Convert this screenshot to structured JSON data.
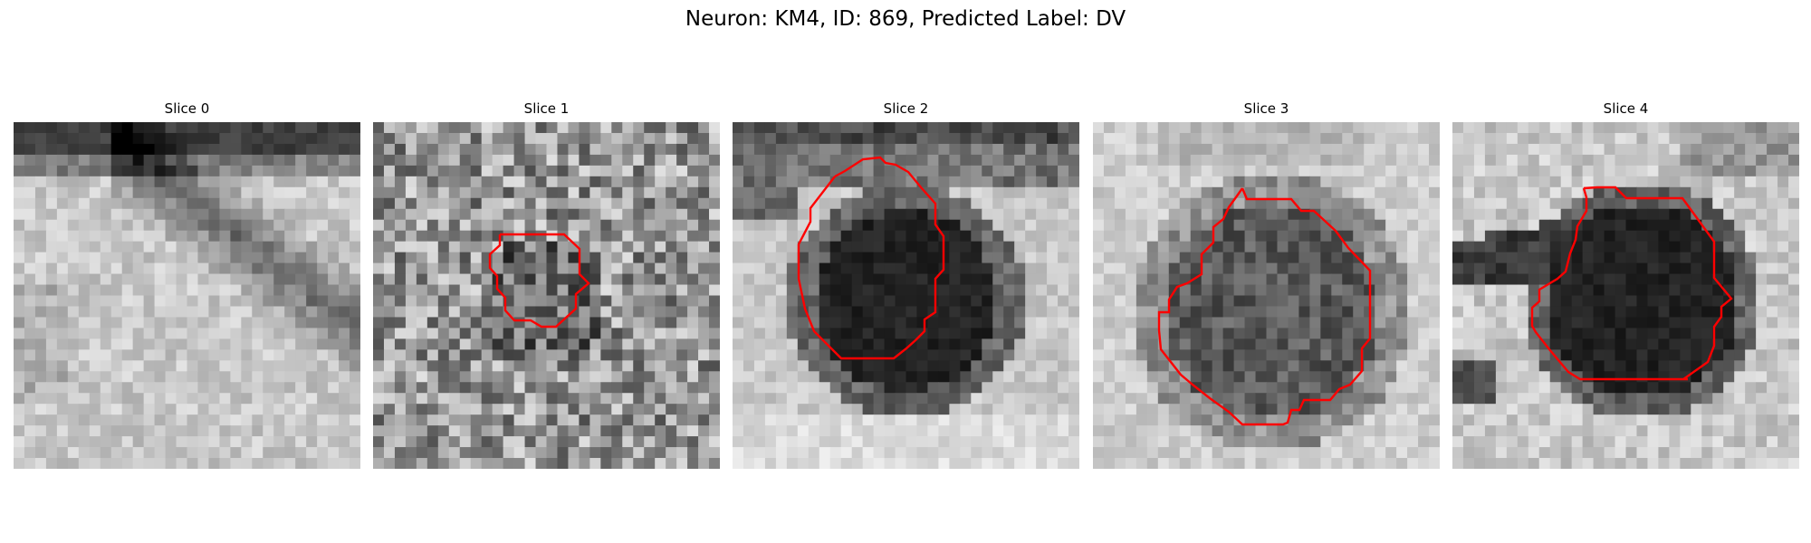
{
  "figure": {
    "title": "Neuron: KM4, ID: 869, Predicted Label: DV"
  },
  "panels": [
    {
      "title": "Slice 0",
      "contour": false,
      "texture": "upper-dark-band with diagonal dark band to lower-right"
    },
    {
      "title": "Slice 1",
      "contour": true,
      "texture": "noisy gray field"
    },
    {
      "title": "Slice 2",
      "contour": true,
      "texture": "dark cell body in center, dark band at top"
    },
    {
      "title": "Slice 3",
      "contour": true,
      "texture": "mottled dark cell body in center"
    },
    {
      "title": "Slice 4",
      "contour": true,
      "texture": "dark cell body with dark process to the left"
    }
  ],
  "colors": {
    "contour": "#ff0000",
    "background": "#ffffff"
  }
}
